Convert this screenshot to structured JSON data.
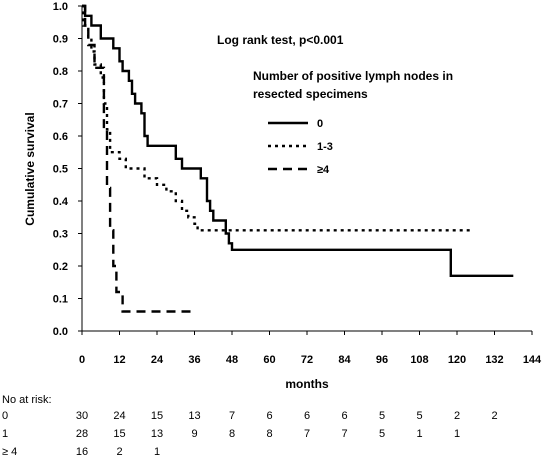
{
  "chart_data": {
    "type": "line",
    "step": true,
    "title": "",
    "annotation": "Log rank test, p<0.001",
    "legend_title": "Number of positive lymph nodes in resected specimens",
    "legend_title_lines": [
      "Number of positive lymph nodes in",
      "resected specimens"
    ],
    "legend_position": "top-right",
    "xlabel": "months",
    "ylabel": "Cumulative survival",
    "xlim": [
      0,
      144
    ],
    "ylim": [
      0,
      1
    ],
    "xticks": [
      0,
      12,
      24,
      36,
      48,
      60,
      72,
      84,
      96,
      108,
      120,
      132,
      144
    ],
    "yticks": [
      "0.0",
      "0.1",
      "0.2",
      "0.3",
      "0.4",
      "0.5",
      "0.6",
      "0.7",
      "0.8",
      "0.9",
      "1.0"
    ],
    "grid": false,
    "series": [
      {
        "name": "0",
        "line_style": "solid",
        "points": [
          [
            0,
            1.0
          ],
          [
            1,
            1.0
          ],
          [
            1,
            0.97
          ],
          [
            3,
            0.97
          ],
          [
            3,
            0.94
          ],
          [
            6,
            0.94
          ],
          [
            6,
            0.9
          ],
          [
            10,
            0.9
          ],
          [
            10,
            0.87
          ],
          [
            12,
            0.87
          ],
          [
            12,
            0.83
          ],
          [
            13,
            0.83
          ],
          [
            13,
            0.8
          ],
          [
            15,
            0.8
          ],
          [
            15,
            0.77
          ],
          [
            16,
            0.77
          ],
          [
            16,
            0.73
          ],
          [
            17,
            0.73
          ],
          [
            17,
            0.7
          ],
          [
            19,
            0.7
          ],
          [
            19,
            0.67
          ],
          [
            20,
            0.67
          ],
          [
            20,
            0.6
          ],
          [
            21,
            0.6
          ],
          [
            21,
            0.57
          ],
          [
            30,
            0.57
          ],
          [
            30,
            0.53
          ],
          [
            32,
            0.53
          ],
          [
            32,
            0.5
          ],
          [
            38,
            0.5
          ],
          [
            38,
            0.47
          ],
          [
            40,
            0.47
          ],
          [
            40,
            0.4
          ],
          [
            41,
            0.4
          ],
          [
            41,
            0.37
          ],
          [
            42,
            0.37
          ],
          [
            42,
            0.34
          ],
          [
            46,
            0.34
          ],
          [
            46,
            0.3
          ],
          [
            47,
            0.3
          ],
          [
            47,
            0.27
          ],
          [
            48,
            0.27
          ],
          [
            48,
            0.25
          ],
          [
            118,
            0.25
          ],
          [
            118,
            0.17
          ],
          [
            138,
            0.17
          ]
        ]
      },
      {
        "name": "1-3",
        "line_style": "dotted",
        "points": [
          [
            0,
            1.0
          ],
          [
            0.5,
            1.0
          ],
          [
            0.5,
            0.94
          ],
          [
            2,
            0.94
          ],
          [
            2,
            0.9
          ],
          [
            3,
            0.9
          ],
          [
            3,
            0.86
          ],
          [
            4,
            0.86
          ],
          [
            4,
            0.82
          ],
          [
            6,
            0.82
          ],
          [
            6,
            0.78
          ],
          [
            7,
            0.78
          ],
          [
            7,
            0.7
          ],
          [
            8,
            0.7
          ],
          [
            8,
            0.62
          ],
          [
            9,
            0.62
          ],
          [
            9,
            0.55
          ],
          [
            12,
            0.55
          ],
          [
            12,
            0.53
          ],
          [
            14,
            0.53
          ],
          [
            14,
            0.5
          ],
          [
            20,
            0.5
          ],
          [
            20,
            0.47
          ],
          [
            24,
            0.47
          ],
          [
            24,
            0.45
          ],
          [
            27,
            0.45
          ],
          [
            27,
            0.43
          ],
          [
            30,
            0.43
          ],
          [
            30,
            0.4
          ],
          [
            32,
            0.4
          ],
          [
            32,
            0.37
          ],
          [
            34,
            0.37
          ],
          [
            34,
            0.35
          ],
          [
            36,
            0.35
          ],
          [
            36,
            0.33
          ],
          [
            37,
            0.33
          ],
          [
            37,
            0.31
          ],
          [
            125,
            0.31
          ]
        ]
      },
      {
        "name": "≥4",
        "line_style": "dashed",
        "points": [
          [
            0,
            1.0
          ],
          [
            1,
            1.0
          ],
          [
            1,
            0.94
          ],
          [
            2,
            0.94
          ],
          [
            2,
            0.88
          ],
          [
            4,
            0.88
          ],
          [
            4,
            0.81
          ],
          [
            7,
            0.81
          ],
          [
            7,
            0.62
          ],
          [
            8,
            0.62
          ],
          [
            8,
            0.44
          ],
          [
            9,
            0.44
          ],
          [
            9,
            0.31
          ],
          [
            10,
            0.31
          ],
          [
            10,
            0.2
          ],
          [
            11,
            0.2
          ],
          [
            11,
            0.12
          ],
          [
            13,
            0.12
          ],
          [
            13,
            0.06
          ],
          [
            35,
            0.06
          ]
        ]
      }
    ]
  },
  "risk_table": {
    "title": "No at risk:",
    "rows": [
      {
        "label": "0",
        "values": [
          "30",
          "24",
          "15",
          "13",
          "7",
          "6",
          "6",
          "6",
          "5",
          "5",
          "2",
          "2"
        ]
      },
      {
        "label": "1",
        "values": [
          "28",
          "15",
          "13",
          "9",
          "8",
          "8",
          "7",
          "7",
          "5",
          "1",
          "1"
        ]
      },
      {
        "label": "≥ 4",
        "values": [
          "16",
          "2",
          "1"
        ]
      }
    ]
  }
}
